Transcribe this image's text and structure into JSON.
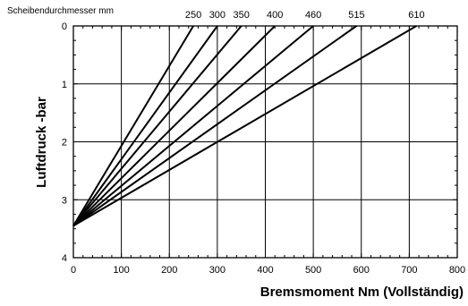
{
  "chart_data": {
    "type": "line",
    "legend_title": "Scheibendurchmesser mm",
    "xlabel": "Bremsmoment Nm (Vollständig)",
    "ylabel": "Luftdruck -bar",
    "xlim": [
      0,
      800
    ],
    "ylim": [
      0,
      4
    ],
    "y_inverted": true,
    "grid": true,
    "x_ticks": [
      "0",
      "100",
      "200",
      "300",
      "400",
      "500",
      "600",
      "700",
      "800"
    ],
    "y_ticks": [
      "0",
      "1",
      "2",
      "3",
      "4"
    ],
    "series": [
      {
        "name": "250",
        "points": [
          [
            0,
            3.45
          ],
          [
            250,
            0
          ]
        ]
      },
      {
        "name": "300",
        "points": [
          [
            0,
            3.45
          ],
          [
            300,
            0
          ]
        ]
      },
      {
        "name": "350",
        "points": [
          [
            0,
            3.45
          ],
          [
            350,
            0
          ]
        ]
      },
      {
        "name": "400",
        "points": [
          [
            0,
            3.45
          ],
          [
            420,
            0
          ]
        ]
      },
      {
        "name": "460",
        "points": [
          [
            0,
            3.45
          ],
          [
            500,
            0
          ]
        ]
      },
      {
        "name": "515",
        "points": [
          [
            0,
            3.45
          ],
          [
            590,
            0
          ]
        ]
      },
      {
        "name": "610",
        "points": [
          [
            0,
            3.45
          ],
          [
            715,
            0
          ]
        ]
      }
    ]
  }
}
